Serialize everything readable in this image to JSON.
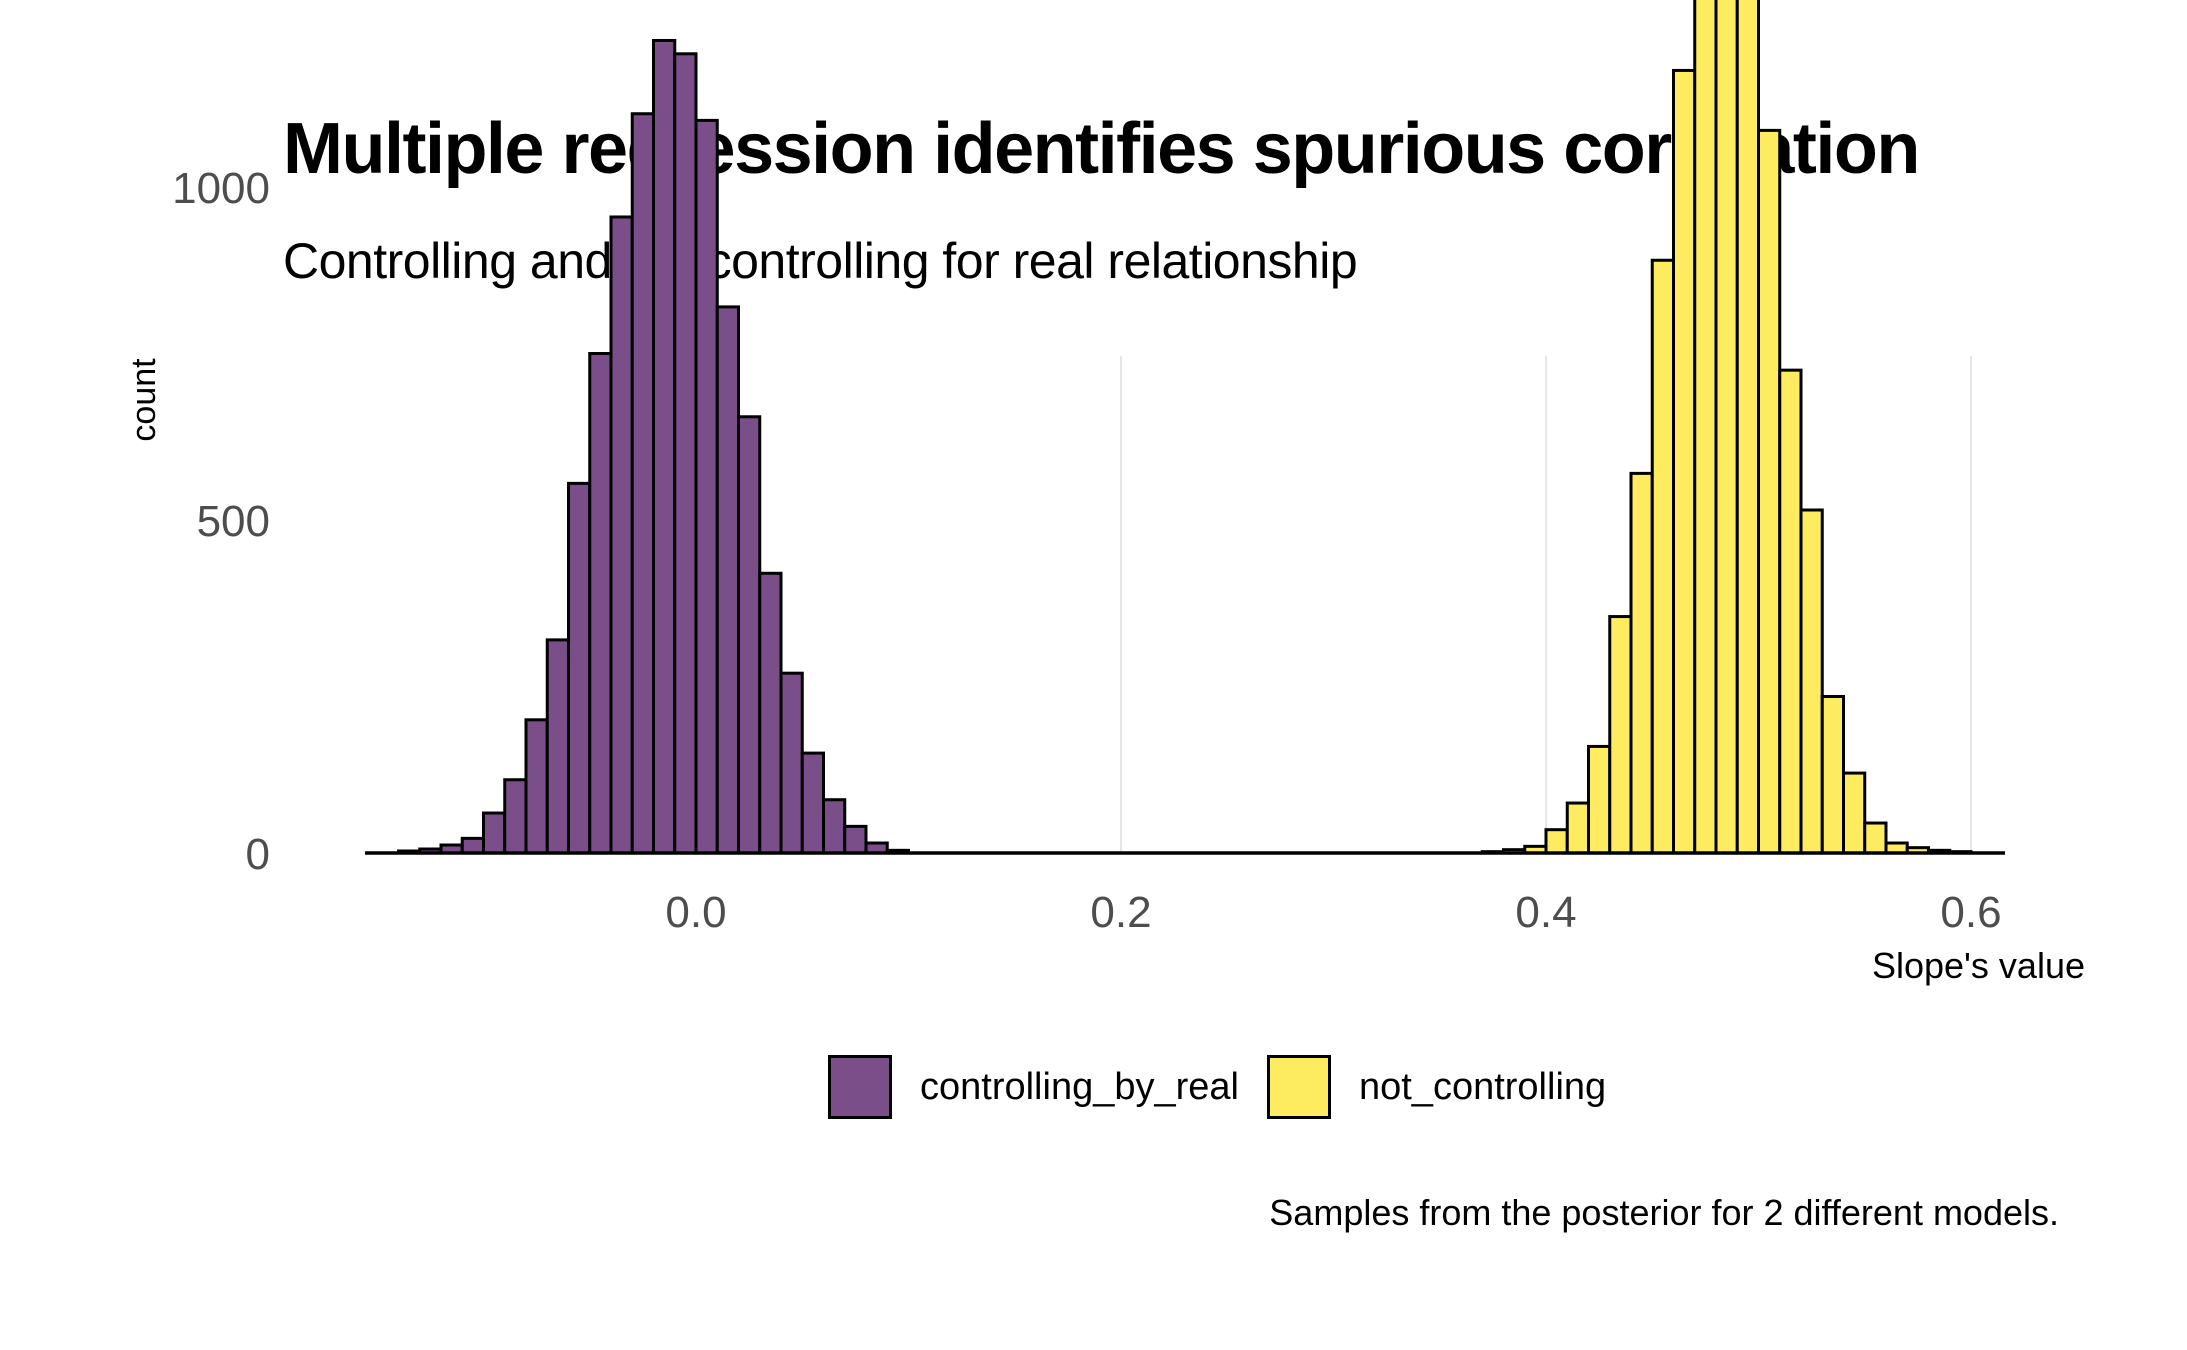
{
  "chart_data": {
    "type": "bar",
    "title": "Multiple regression identifies spurious correlation",
    "subtitle": "Controlling and not controlling for real relationship",
    "xlabel": "Slope's value",
    "ylabel": "count",
    "caption": "Samples from the posterior for 2 different models.",
    "x_ticks": [
      0.0,
      0.2,
      0.4,
      0.6
    ],
    "x_tick_labels": [
      "0.0",
      "0.2",
      "0.4",
      "0.6"
    ],
    "y_ticks": [
      0,
      500,
      1000
    ],
    "y_tick_labels": [
      "0",
      "500",
      "1000"
    ],
    "xlim": [
      -0.155,
      0.615
    ],
    "ylim": [
      0,
      1500
    ],
    "bin_width": 0.01,
    "grid": "vertical major only",
    "legend_position": "bottom",
    "series": [
      {
        "name": "controlling_by_real",
        "color": "#7a4e88",
        "bin_centers": [
          -0.135,
          -0.125,
          -0.115,
          -0.105,
          -0.095,
          -0.085,
          -0.075,
          -0.065,
          -0.055,
          -0.045,
          -0.035,
          -0.025,
          -0.015,
          -0.005,
          0.005,
          0.015,
          0.025,
          0.035,
          0.045,
          0.055,
          0.065,
          0.075,
          0.085,
          0.095
        ],
        "counts": [
          3,
          6,
          12,
          22,
          60,
          110,
          200,
          320,
          555,
          750,
          955,
          1110,
          1220,
          1200,
          1100,
          820,
          655,
          420,
          270,
          150,
          80,
          40,
          15,
          4
        ]
      },
      {
        "name": "not_controlling",
        "color": "#fdec5f",
        "bin_centers": [
          0.375,
          0.385,
          0.395,
          0.405,
          0.415,
          0.425,
          0.435,
          0.445,
          0.455,
          0.465,
          0.475,
          0.485,
          0.495,
          0.505,
          0.515,
          0.525,
          0.535,
          0.545,
          0.555,
          0.565,
          0.575,
          0.585,
          0.595
        ],
        "counts": [
          2,
          5,
          10,
          35,
          75,
          160,
          355,
          570,
          890,
          1175,
          1305,
          1420,
          1310,
          1085,
          725,
          515,
          235,
          120,
          45,
          15,
          8,
          4,
          2
        ]
      }
    ]
  }
}
